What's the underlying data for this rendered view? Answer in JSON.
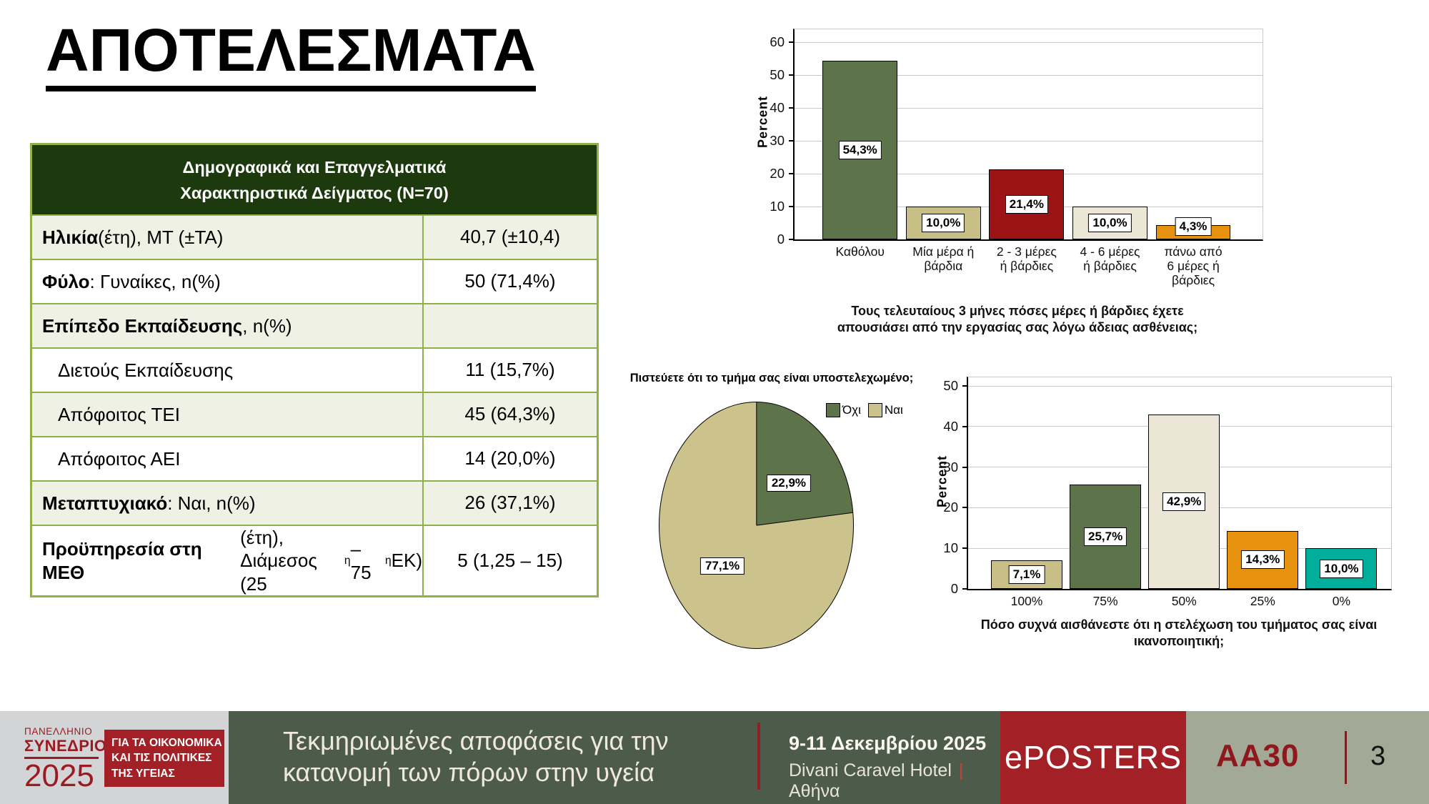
{
  "page": {
    "title": "ΑΠΟΤΕΛΕΣΜΑΤΑ",
    "poster_code": "AA30",
    "page_number": "3"
  },
  "table": {
    "header": {
      "line1": "Δημογραφικά και Επαγγελματικά",
      "line2": "Χαρακτηριστικά Δείγματος (N=70)"
    },
    "rows": [
      {
        "bold": "Ηλικία",
        "rest": " (έτη), ΜΤ (±ΤΑ)",
        "value": "40,7 (±10,4)",
        "indent": false
      },
      {
        "bold": "Φύλο",
        "rest": ": Γυναίκες, n(%)",
        "value": "50 (71,4%)",
        "indent": false
      },
      {
        "bold": "Επίπεδο Εκπαίδευσης",
        "rest": ", n(%)",
        "value": "",
        "indent": false
      },
      {
        "bold": "",
        "rest": "Διετούς Εκπαίδευσης",
        "value": "11 (15,7%)",
        "indent": true
      },
      {
        "bold": "",
        "rest": "Απόφοιτος ΤΕΙ",
        "value": "45 (64,3%)",
        "indent": true
      },
      {
        "bold": "",
        "rest": "Απόφοιτος ΑΕΙ",
        "value": "14 (20,0%)",
        "indent": true
      },
      {
        "bold": "Μεταπτυχιακό",
        "rest": ": Ναι, n(%)",
        "value": "26 (37,1%)",
        "indent": false
      },
      {
        "bold": "Προϋπηρεσία στη ΜΕΘ",
        "rest": " (έτη),",
        "line2": "Διάμεσος (25^η^ – 75^η^ ΕΚ)",
        "value": "5 (1,25 – 15)",
        "indent": false
      }
    ]
  },
  "chart_data": [
    {
      "type": "bar",
      "name": "sick-leave-bar-chart",
      "title": "Τους τελευταίους 3 μήνες πόσες μέρες ή βάρδιες έχετε απουσιάσει από την εργασίας σας λόγω άδειας ασθένειας;",
      "ylabel": "Percent",
      "ylim": [
        0,
        60
      ],
      "yticks": [
        0,
        10,
        20,
        30,
        40,
        50,
        60
      ],
      "grid": true,
      "categories": [
        "Καθόλου",
        "Μία μέρα ή\nβάρδια",
        "2 - 3 μέρες\nή βάρδιες",
        "4 - 6 μέρες\nή βάρδιες",
        "πάνω από\n6 μέρες ή\nβάρδιες"
      ],
      "values": [
        54.3,
        10.0,
        21.4,
        10.0,
        4.3
      ],
      "value_labels": [
        "54,3%",
        "10,0%",
        "21,4%",
        "10,0%",
        "4,3%"
      ],
      "bar_colors": [
        "#5d7349",
        "#c7bf86",
        "#9d1214",
        "#ebe6d5",
        "#e6920e"
      ]
    },
    {
      "type": "pie",
      "name": "understaffed-pie-chart",
      "title": "Πιστεύετε ότι το τμήμα σας είναι υποστελεχωμένο;",
      "legend_position": "top-right",
      "slices": [
        {
          "label": "Όχι",
          "value": 22.9,
          "display": "22,9%",
          "color": "#5d7349"
        },
        {
          "label": "Ναι",
          "value": 77.1,
          "display": "77,1%",
          "color": "#cbc28c"
        }
      ]
    },
    {
      "type": "bar",
      "name": "staffing-adequacy-bar-chart",
      "title": "Πόσο συχνά αισθάνεστε ότι η στελέχωση του τμήματος σας είναι ικανοποιητική;",
      "ylabel": "Percent",
      "ylim": [
        0,
        50
      ],
      "yticks": [
        0,
        10,
        20,
        30,
        40,
        50
      ],
      "grid": true,
      "categories": [
        "100%",
        "75%",
        "50%",
        "25%",
        "0%"
      ],
      "values": [
        7.1,
        25.7,
        42.9,
        14.3,
        10.0
      ],
      "value_labels": [
        "7,1%",
        "25,7%",
        "42,9%",
        "14,3%",
        "10,0%"
      ],
      "bar_colors": [
        "#c7bf86",
        "#5d7349",
        "#ebe6d5",
        "#e6920e",
        "#00ae9b"
      ]
    }
  ],
  "footer": {
    "congress": {
      "line1": "ΠΑΝΕΛΛΗΝΙΟ",
      "line2": "ΣΥΝΕΔΡΙΟ",
      "year": "2025",
      "box_line1": "ΓΙΑ ΤΑ ΟΙΚΟΝΟΜΙΚΑ",
      "box_line2": "ΚΑΙ ΤΙΣ ΠΟΛΙΤΙΚΕΣ",
      "box_line3": "ΤΗΣ ΥΓΕΙΑΣ"
    },
    "slogan_line1": "Τεκμηριωμένες αποφάσεις για την",
    "slogan_line2": "κατανομή των πόρων στην υγεία",
    "date": "9-11 Δεκεμβρίου 2025",
    "venue": "Divani Caravel Hotel",
    "venue_separator": "|",
    "city": "Αθήνα",
    "eposters": "ePOSTERS",
    "colors": {
      "accent_red": "#a32126",
      "dark_green_bg": "#4d5c4a",
      "sage_bg": "#a2a997",
      "gray_bg": "#d3d4d5"
    }
  }
}
